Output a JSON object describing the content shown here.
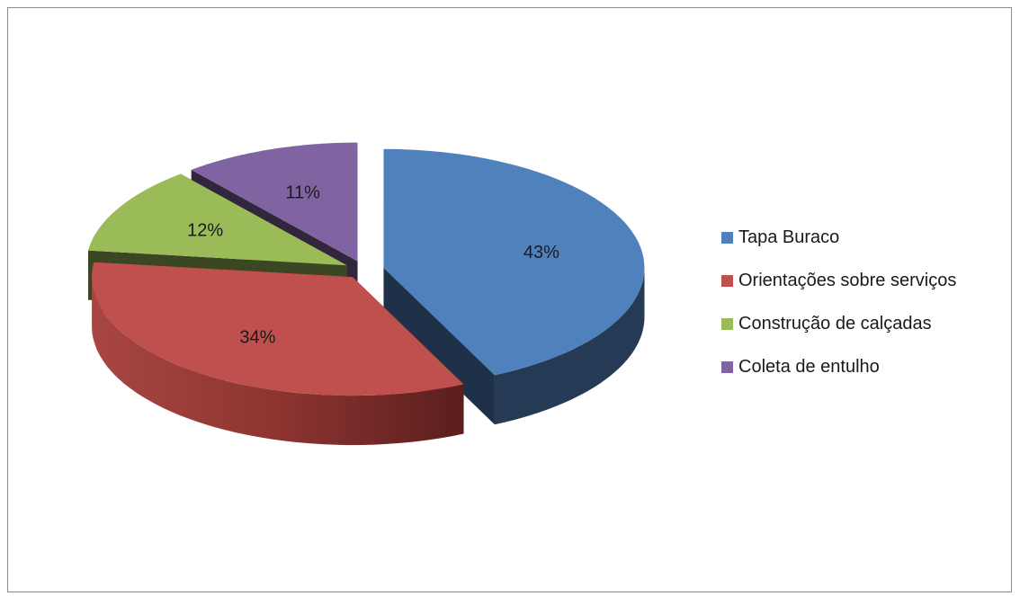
{
  "chart_data": {
    "type": "pie",
    "style": "3d-exploded",
    "categories": [
      "Tapa Buraco",
      "Orientações sobre serviços",
      "Construção de calçadas",
      "Coleta de entulho"
    ],
    "values": [
      43,
      34,
      12,
      11
    ],
    "data_labels": [
      "43%",
      "34%",
      "12%",
      "11%"
    ],
    "colors": [
      "#4f81bd",
      "#c0504d",
      "#9bbb59",
      "#8064a2"
    ],
    "legend_position": "right"
  },
  "legend": {
    "items": [
      {
        "label": "Tapa Buraco",
        "color": "#4f81bd"
      },
      {
        "label": "Orientações sobre serviços",
        "color": "#c0504d"
      },
      {
        "label": "Construção de calçadas",
        "color": "#9bbb59"
      },
      {
        "label": "Coleta de entulho",
        "color": "#8064a2"
      }
    ]
  }
}
